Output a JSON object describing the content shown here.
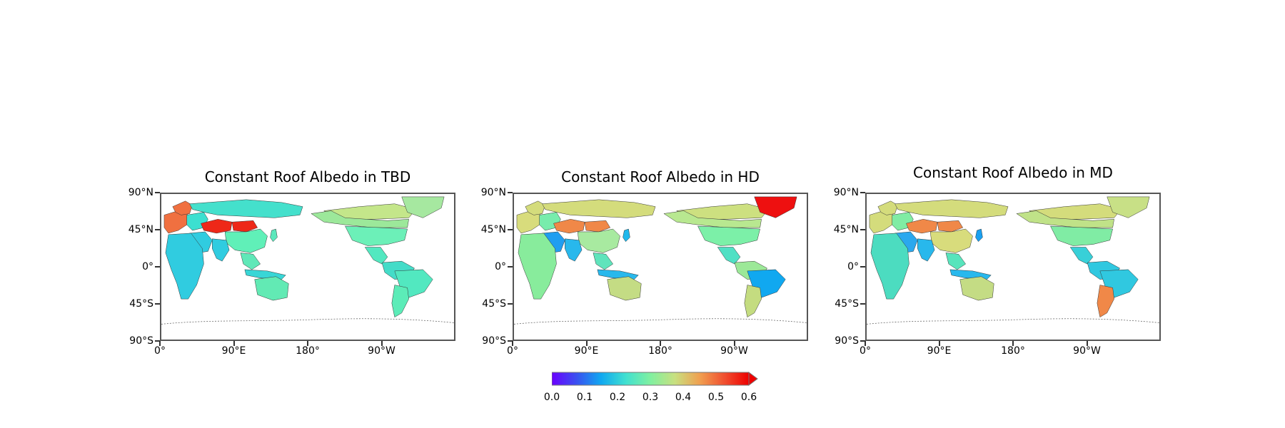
{
  "panels": [
    {
      "title": "Constant Roof Albedo in TBD",
      "regions": {
        "north_america": "#9ce89a",
        "greenland": "#a6e8a0",
        "canada_north": "#c4e68a",
        "usa": "#6cf0b8",
        "central_america": "#52e8c0",
        "south_america_north": "#44dcc8",
        "brazil": "#52e8c0",
        "south_america_south": "#5cecb8",
        "europe_west": "#f07040",
        "europe_east": "#3ce0d0",
        "russia": "#44e0cc",
        "kazakhstan": "#ee2818",
        "mongolia": "#ee2818",
        "china": "#60f0b8",
        "middle_east": "#30cce0",
        "india": "#30cce0",
        "africa": "#30cce0",
        "southeast_asia": "#60e8b8",
        "australia": "#62eab4",
        "japan": "#5ce8bc",
        "indonesia": "#38d6d6",
        "scandinavia": "#f07040"
      }
    },
    {
      "title": "Constant Roof Albedo in HD",
      "regions": {
        "north_america": "#b8e890",
        "greenland": "#ee1010",
        "canada_north": "#cde080",
        "usa": "#7cf0a8",
        "central_america": "#50e0c4",
        "south_america_north": "#9ce898",
        "brazil": "#10a8f0",
        "south_america_south": "#c4dc80",
        "europe_west": "#d8dc7c",
        "europe_east": "#78ecac",
        "russia": "#d4dc7c",
        "kazakhstan": "#f08848",
        "mongolia": "#f08848",
        "china": "#a8eaa0",
        "middle_east": "#209ef0",
        "india": "#28b8ec",
        "africa": "#88ec9c",
        "southeast_asia": "#60e4bc",
        "australia": "#c4dc84",
        "japan": "#20b8ec",
        "indonesia": "#28b8ec",
        "scandinavia": "#d4dc7c"
      }
    },
    {
      "title": "Constant Roof Albedo in MD",
      "regions": {
        "north_america": "#c0e288",
        "greenland": "#c8e086",
        "canada_north": "#d4dc7c",
        "usa": "#80eca4",
        "central_america": "#38d0d8",
        "south_america_north": "#30c8e0",
        "brazil": "#30c8e0",
        "south_america_south": "#f08848",
        "europe_west": "#d4dc7c",
        "europe_east": "#80eca4",
        "russia": "#d4dc7c",
        "kazakhstan": "#f08848",
        "mongolia": "#f08848",
        "china": "#d8dc7c",
        "middle_east": "#2aa8ee",
        "india": "#28b8ec",
        "africa": "#4cdcc0",
        "southeast_asia": "#58e4bc",
        "australia": "#c4dc84",
        "japan": "#1aa0f0",
        "indonesia": "#28b8ec",
        "scandinavia": "#d4dc7c"
      }
    }
  ],
  "axes": {
    "y_ticks": [
      "90°N",
      "45°N",
      "0°",
      "45°S",
      "90°S"
    ],
    "x_ticks": [
      "0°",
      "90°E",
      "180°",
      "90°W"
    ]
  },
  "colorbar": {
    "ticks": [
      "0.0",
      "0.1",
      "0.2",
      "0.3",
      "0.4",
      "0.5",
      "0.6"
    ],
    "colors": [
      "#6a00ff",
      "#3a50f0",
      "#10a8f0",
      "#40e0d0",
      "#80f0a0",
      "#c8e080",
      "#f0a050",
      "#f05030",
      "#ee0000"
    ],
    "extend_color": "#ee0000"
  }
}
